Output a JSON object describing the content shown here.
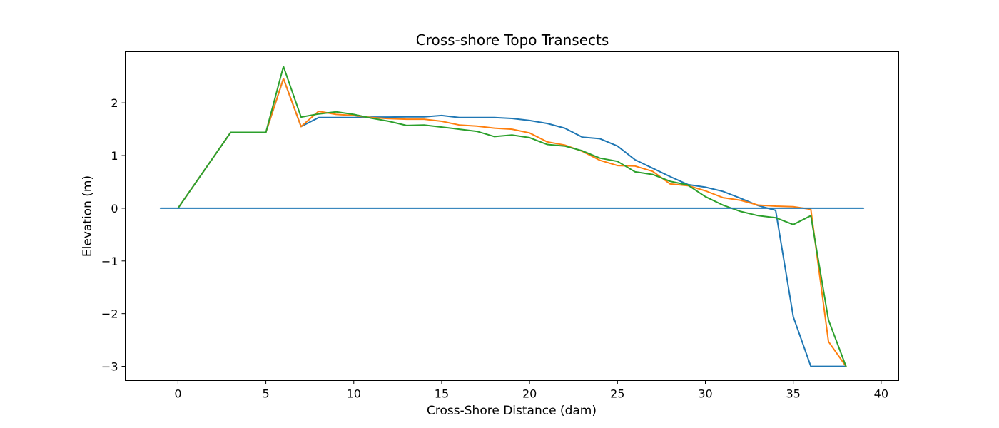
{
  "chart_data": {
    "type": "line",
    "title": "Cross-shore Topo Transects",
    "xlabel": "Cross-Shore Distance (dam)",
    "ylabel": "Elevation (m)",
    "xlim": [
      -3,
      41
    ],
    "ylim": [
      -3.27,
      2.97
    ],
    "xticks": [
      0,
      5,
      10,
      15,
      20,
      25,
      30,
      35,
      40
    ],
    "yticks": [
      -3,
      -2,
      -1,
      0,
      1,
      2
    ],
    "ytick_labels": [
      "−3",
      "−2",
      "−1",
      "0",
      "1",
      "2"
    ],
    "grid": false,
    "legend": false,
    "series": [
      {
        "color": "#1f77b4",
        "x": [
          0,
          3,
          5,
          6,
          7,
          8,
          9,
          10,
          11,
          12,
          13,
          14,
          15,
          16,
          17,
          18,
          19,
          20,
          21,
          22,
          23,
          24,
          25,
          26,
          27,
          28,
          29,
          30,
          31,
          32,
          33,
          34,
          35,
          36,
          37,
          38
        ],
        "y": [
          0,
          1.44,
          1.44,
          2.46,
          1.55,
          1.72,
          1.72,
          1.72,
          1.73,
          1.73,
          1.735,
          1.735,
          1.76,
          1.72,
          1.72,
          1.72,
          1.705,
          1.665,
          1.61,
          1.52,
          1.35,
          1.32,
          1.18,
          0.92,
          0.76,
          0.6,
          0.45,
          0.4,
          0.32,
          0.19,
          0.05,
          -0.04,
          -2.06,
          -3,
          -3,
          -3
        ]
      },
      {
        "color": "#ff7f0e",
        "x": [
          0,
          3,
          5,
          6,
          7,
          8,
          9,
          10,
          11,
          12,
          13,
          14,
          15,
          16,
          17,
          18,
          19,
          20,
          21,
          22,
          23,
          24,
          25,
          26,
          27,
          28,
          29,
          30,
          31,
          32,
          33,
          34,
          35,
          36,
          37,
          38
        ],
        "y": [
          0,
          1.44,
          1.44,
          2.46,
          1.55,
          1.84,
          1.78,
          1.76,
          1.72,
          1.7,
          1.69,
          1.69,
          1.65,
          1.58,
          1.56,
          1.52,
          1.5,
          1.43,
          1.26,
          1.2,
          1.08,
          0.91,
          0.81,
          0.8,
          0.7,
          0.46,
          0.43,
          0.33,
          0.2,
          0.15,
          0.06,
          0.04,
          0.03,
          -0.02,
          -2.53,
          -3
        ]
      },
      {
        "color": "#2ca02c",
        "x": [
          0,
          3,
          5,
          6,
          7,
          8,
          9,
          10,
          11,
          12,
          13,
          14,
          15,
          16,
          17,
          18,
          19,
          20,
          21,
          22,
          23,
          24,
          25,
          26,
          27,
          28,
          29,
          30,
          31,
          32,
          33,
          34,
          35,
          36,
          37,
          38
        ],
        "y": [
          0,
          1.44,
          1.44,
          2.69,
          1.73,
          1.79,
          1.83,
          1.78,
          1.71,
          1.65,
          1.57,
          1.58,
          1.54,
          1.5,
          1.46,
          1.36,
          1.39,
          1.34,
          1.21,
          1.18,
          1.09,
          0.95,
          0.89,
          0.69,
          0.64,
          0.51,
          0.44,
          0.22,
          0.06,
          -0.06,
          -0.14,
          -0.18,
          -0.31,
          -0.14,
          -2.12,
          -3
        ]
      },
      {
        "color": "#1f77b4",
        "x": [
          -1,
          39
        ],
        "y": [
          0,
          0
        ]
      }
    ]
  }
}
